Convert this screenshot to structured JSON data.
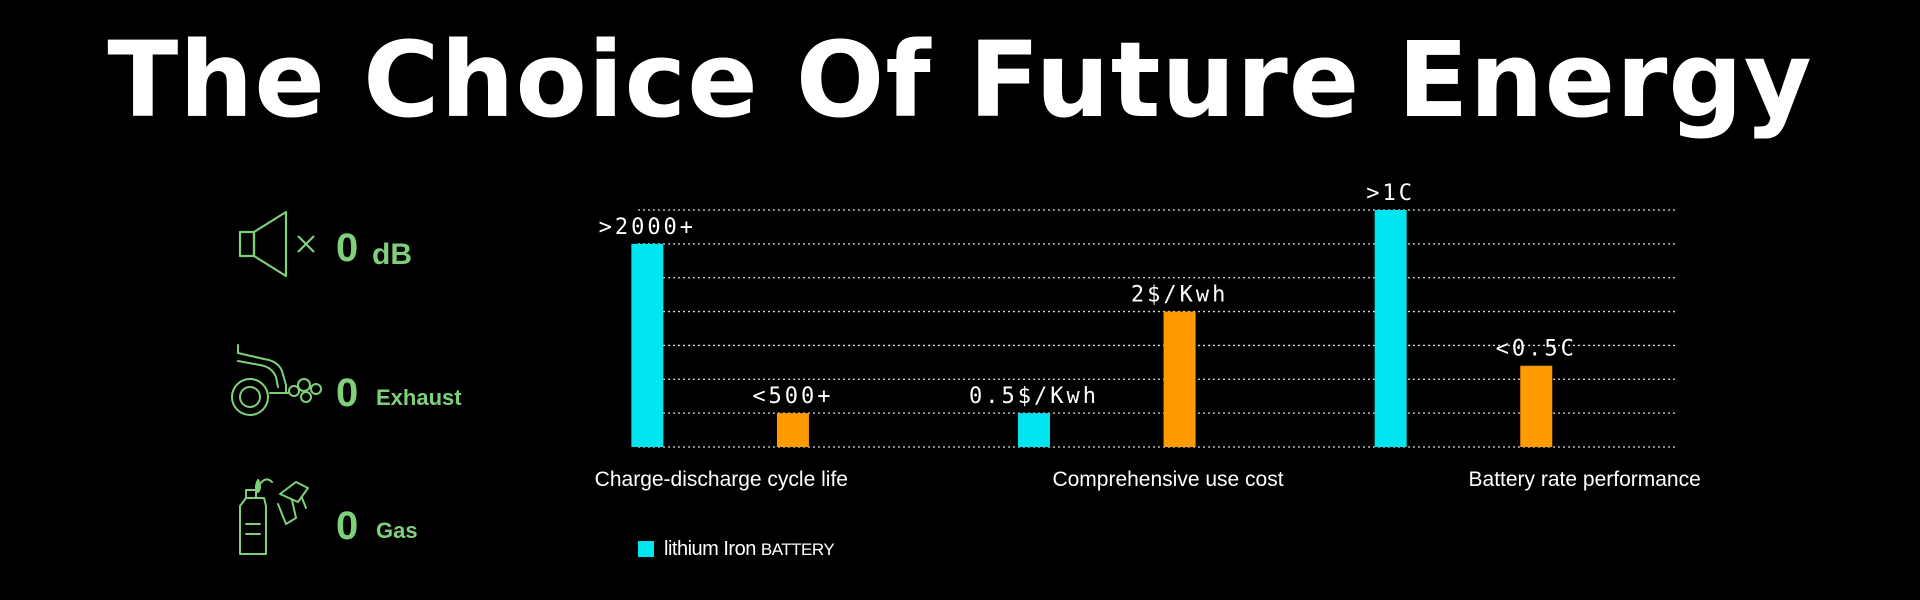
{
  "header": {
    "title": "The Choice Of Future Energy"
  },
  "stats": [
    {
      "icon": "speaker-muted-icon",
      "value": "0",
      "unit": "dB"
    },
    {
      "icon": "car-exhaust-icon",
      "value": "0",
      "unit": "Exhaust"
    },
    {
      "icon": "fuel-nozzle-icon",
      "value": "0",
      "unit": "Gas"
    }
  ],
  "legend": {
    "label_main": "lithium Iron ",
    "label_small": "BATTERY"
  },
  "colors": {
    "lithium": "#00e5f0",
    "comparison": "#ff9a00",
    "stat_green": "#7fd07a",
    "grid": "#d9d9d9"
  },
  "chart_data": {
    "type": "bar",
    "categories": [
      "Charge-discharge cycle life",
      "Comprehensive use cost",
      "Battery rate performance"
    ],
    "series": [
      {
        "name": "lithium Iron BATTERY",
        "values": [
          6,
          1,
          7
        ],
        "labels": [
          ">2000+",
          "0.5$/Kwh",
          ">1C"
        ]
      },
      {
        "values": [
          1,
          4,
          2.4
        ],
        "labels": [
          "<500+",
          "2$/Kwh",
          "<0.5C"
        ]
      }
    ],
    "ylim": [
      0,
      7
    ],
    "grid": true,
    "legend_position": "bottom-left"
  }
}
